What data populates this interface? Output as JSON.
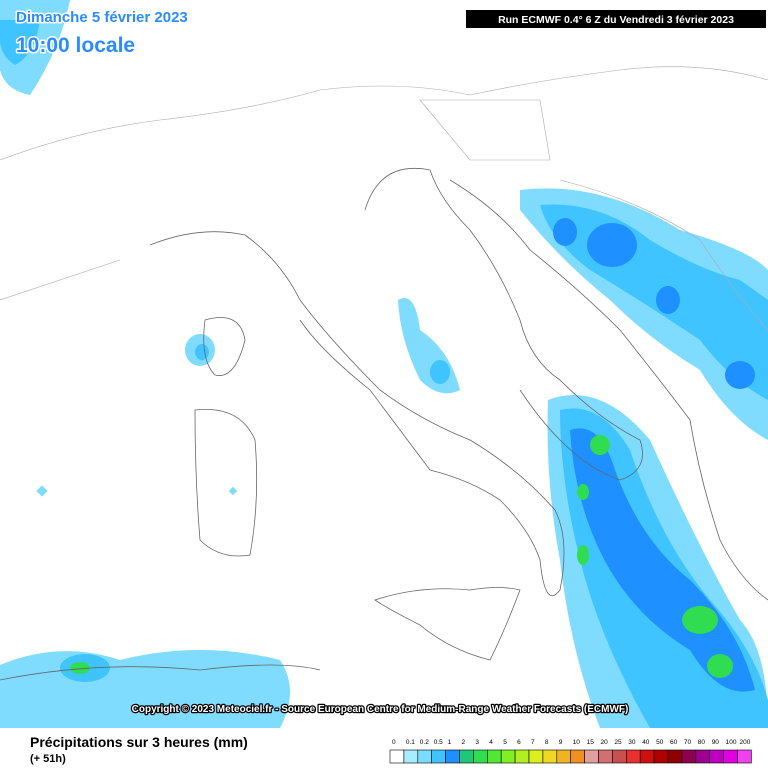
{
  "header": {
    "date": "Dimanche 5 février 2023",
    "time": "10:00 locale",
    "run": "Run ECMWF 0.4° 6 Z du Vendredi 3 février 2023"
  },
  "copyright": "Copyright © 2023 Meteociel.fr - Source European Centre for Medium-Range Weather Forecasts (ECMWF)",
  "footer": {
    "title": "Précipitations sur 3 heures (mm)",
    "lead": "(+ 51h)"
  },
  "legend": {
    "labels": [
      0,
      0.1,
      0.2,
      0.5,
      1,
      2,
      3,
      4,
      5,
      6,
      7,
      8,
      9,
      10,
      15,
      20,
      25,
      30,
      40,
      50,
      60,
      70,
      80,
      90,
      100,
      200
    ],
    "colors": [
      "#ffffff",
      "#a8ecff",
      "#78dcff",
      "#40c4ff",
      "#1e90ff",
      "#1ec878",
      "#30dc50",
      "#50e830",
      "#80f020",
      "#b0f020",
      "#dcf020",
      "#f0d820",
      "#f0b420",
      "#f09020",
      "#e0a0a0",
      "#d07070",
      "#c85050",
      "#e83030",
      "#d01010",
      "#b00000",
      "#900000",
      "#900050",
      "#a00090",
      "#c000c0",
      "#e000e0",
      "#f040f0"
    ]
  }
}
